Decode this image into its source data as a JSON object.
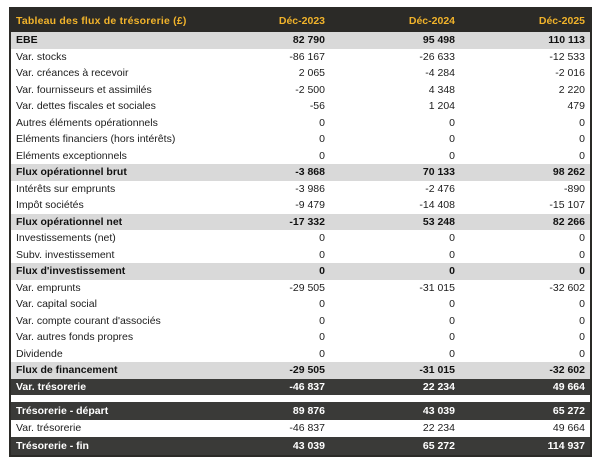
{
  "table": {
    "title": "Tableau des flux de trésorerie (£)",
    "columns": [
      "Déc-2023",
      "Déc-2024",
      "Déc-2025"
    ],
    "rows": [
      {
        "label": "EBE",
        "values": [
          "82 790",
          "95 498",
          "110 113"
        ],
        "type": "subtotal"
      },
      {
        "label": "Var. stocks",
        "values": [
          "-86 167",
          "-26 633",
          "-12 533"
        ],
        "type": "normal"
      },
      {
        "label": "Var. créances à recevoir",
        "values": [
          "2 065",
          "-4 284",
          "-2 016"
        ],
        "type": "normal"
      },
      {
        "label": "Var. fournisseurs et assimilés",
        "values": [
          "-2 500",
          "4 348",
          "2 220"
        ],
        "type": "normal"
      },
      {
        "label": "Var. dettes fiscales et sociales",
        "values": [
          "-56",
          "1 204",
          "479"
        ],
        "type": "normal"
      },
      {
        "label": "Autres éléments opérationnels",
        "values": [
          "0",
          "0",
          "0"
        ],
        "type": "normal"
      },
      {
        "label": "Eléments financiers (hors intérêts)",
        "values": [
          "0",
          "0",
          "0"
        ],
        "type": "normal"
      },
      {
        "label": "Eléments exceptionnels",
        "values": [
          "0",
          "0",
          "0"
        ],
        "type": "normal"
      },
      {
        "label": "Flux opérationnel brut",
        "values": [
          "-3 868",
          "70 133",
          "98 262"
        ],
        "type": "subtotal"
      },
      {
        "label": "Intérêts sur emprunts",
        "values": [
          "-3 986",
          "-2 476",
          "-890"
        ],
        "type": "normal"
      },
      {
        "label": "Impôt sociétés",
        "values": [
          "-9 479",
          "-14 408",
          "-15 107"
        ],
        "type": "normal"
      },
      {
        "label": "Flux opérationnel net",
        "values": [
          "-17 332",
          "53 248",
          "82 266"
        ],
        "type": "subtotal"
      },
      {
        "label": "Investissements (net)",
        "values": [
          "0",
          "0",
          "0"
        ],
        "type": "normal"
      },
      {
        "label": "Subv. investissement",
        "values": [
          "0",
          "0",
          "0"
        ],
        "type": "normal"
      },
      {
        "label": "Flux d'investissement",
        "values": [
          "0",
          "0",
          "0"
        ],
        "type": "subtotal"
      },
      {
        "label": "Var. emprunts",
        "values": [
          "-29 505",
          "-31 015",
          "-32 602"
        ],
        "type": "normal"
      },
      {
        "label": "Var. capital social",
        "values": [
          "0",
          "0",
          "0"
        ],
        "type": "normal"
      },
      {
        "label": "Var. compte courant d'associés",
        "values": [
          "0",
          "0",
          "0"
        ],
        "type": "normal"
      },
      {
        "label": "Var. autres fonds propres",
        "values": [
          "0",
          "0",
          "0"
        ],
        "type": "normal"
      },
      {
        "label": "Dividende",
        "values": [
          "0",
          "0",
          "0"
        ],
        "type": "normal"
      },
      {
        "label": "Flux de financement",
        "values": [
          "-29 505",
          "-31 015",
          "-32 602"
        ],
        "type": "subtotal"
      },
      {
        "label": "Var. trésorerie",
        "values": [
          "-46 837",
          "22 234",
          "49 664"
        ],
        "type": "dark"
      }
    ],
    "summary_rows": [
      {
        "label": "Trésorerie - départ",
        "values": [
          "89 876",
          "43 039",
          "65 272"
        ],
        "type": "dark"
      },
      {
        "label": "Var. trésorerie",
        "values": [
          "-46 837",
          "22 234",
          "49 664"
        ],
        "type": "normal"
      },
      {
        "label": "Trésorerie - fin",
        "values": [
          "43 039",
          "65 272",
          "114 937"
        ],
        "type": "dark"
      }
    ]
  },
  "colors": {
    "header_bg": "#2b2a27",
    "header_text": "#f1b32b",
    "subtotal_row_bg": "#d9d9d9",
    "dark_row_bg": "#3a3a38",
    "dark_row_text": "#ffffff",
    "body_text": "#1c1c1c",
    "table_border": "#2b2a27",
    "page_bg": "#ffffff"
  },
  "chart_data": {
    "type": "table",
    "title": "Tableau des flux de trésorerie (£)",
    "columns": [
      "Déc-2023",
      "Déc-2024",
      "Déc-2025"
    ],
    "rows": [
      {
        "label": "EBE",
        "values": [
          82790,
          95498,
          110113
        ]
      },
      {
        "label": "Var. stocks",
        "values": [
          -86167,
          -26633,
          -12533
        ]
      },
      {
        "label": "Var. créances à recevoir",
        "values": [
          2065,
          -4284,
          -2016
        ]
      },
      {
        "label": "Var. fournisseurs et assimilés",
        "values": [
          -2500,
          4348,
          2220
        ]
      },
      {
        "label": "Var. dettes fiscales et sociales",
        "values": [
          -56,
          1204,
          479
        ]
      },
      {
        "label": "Autres éléments opérationnels",
        "values": [
          0,
          0,
          0
        ]
      },
      {
        "label": "Eléments financiers (hors intérêts)",
        "values": [
          0,
          0,
          0
        ]
      },
      {
        "label": "Eléments exceptionnels",
        "values": [
          0,
          0,
          0
        ]
      },
      {
        "label": "Flux opérationnel brut",
        "values": [
          -3868,
          70133,
          98262
        ]
      },
      {
        "label": "Intérêts sur emprunts",
        "values": [
          -3986,
          -2476,
          -890
        ]
      },
      {
        "label": "Impôt sociétés",
        "values": [
          -9479,
          -14408,
          -15107
        ]
      },
      {
        "label": "Flux opérationnel net",
        "values": [
          -17332,
          53248,
          82266
        ]
      },
      {
        "label": "Investissements (net)",
        "values": [
          0,
          0,
          0
        ]
      },
      {
        "label": "Subv. investissement",
        "values": [
          0,
          0,
          0
        ]
      },
      {
        "label": "Flux d'investissement",
        "values": [
          0,
          0,
          0
        ]
      },
      {
        "label": "Var. emprunts",
        "values": [
          -29505,
          -31015,
          -32602
        ]
      },
      {
        "label": "Var. capital social",
        "values": [
          0,
          0,
          0
        ]
      },
      {
        "label": "Var. compte courant d'associés",
        "values": [
          0,
          0,
          0
        ]
      },
      {
        "label": "Var. autres fonds propres",
        "values": [
          0,
          0,
          0
        ]
      },
      {
        "label": "Dividende",
        "values": [
          0,
          0,
          0
        ]
      },
      {
        "label": "Flux de financement",
        "values": [
          -29505,
          -31015,
          -32602
        ]
      },
      {
        "label": "Var. trésorerie",
        "values": [
          -46837,
          22234,
          49664
        ]
      },
      {
        "label": "Trésorerie - départ",
        "values": [
          89876,
          43039,
          65272
        ]
      },
      {
        "label": "Var. trésorerie",
        "values": [
          -46837,
          22234,
          49664
        ]
      },
      {
        "label": "Trésorerie - fin",
        "values": [
          43039,
          65272,
          114937
        ]
      }
    ]
  }
}
